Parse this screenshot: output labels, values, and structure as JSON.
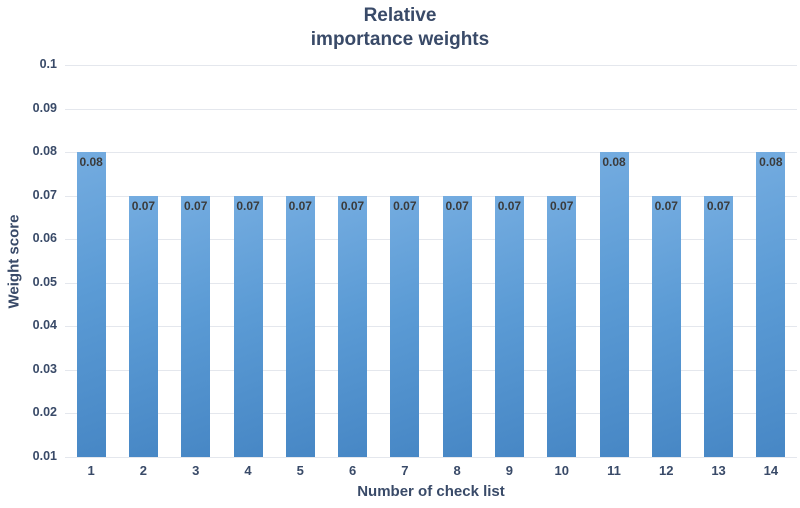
{
  "chart_data": {
    "type": "bar",
    "title_lines": [
      "Relative",
      "importance weights"
    ],
    "xlabel": "Number of check list",
    "ylabel": "Weight score",
    "categories": [
      "1",
      "2",
      "3",
      "4",
      "5",
      "6",
      "7",
      "8",
      "9",
      "10",
      "11",
      "12",
      "13",
      "14"
    ],
    "values": [
      0.08,
      0.07,
      0.07,
      0.07,
      0.07,
      0.07,
      0.07,
      0.07,
      0.07,
      0.07,
      0.08,
      0.07,
      0.07,
      0.08
    ],
    "value_labels": [
      "0.08",
      "0.07",
      "0.07",
      "0.07",
      "0.07",
      "0.07",
      "0.07",
      "0.07",
      "0.07",
      "0.07",
      "0.08",
      "0.07",
      "0.07",
      "0.08"
    ],
    "ytick_labels": [
      "0.1",
      "0.09",
      "0.08",
      "0.07",
      "0.06",
      "0.05",
      "0.04",
      "0.03",
      "0.02",
      "0.01"
    ],
    "ylim": [
      0.01,
      0.1
    ],
    "grid": true,
    "legend": "none",
    "colors": {
      "bar_gradient_top": "#74ace0",
      "bar_mid": "#5b9bd5",
      "bar_gradient_bottom": "#4787c5",
      "axis_text": "#394a68",
      "data_label_text": "#3b3b3b",
      "gridline": "#e4e7ed",
      "axis_line": "#c9cfd9",
      "background": "#ffffff"
    }
  }
}
